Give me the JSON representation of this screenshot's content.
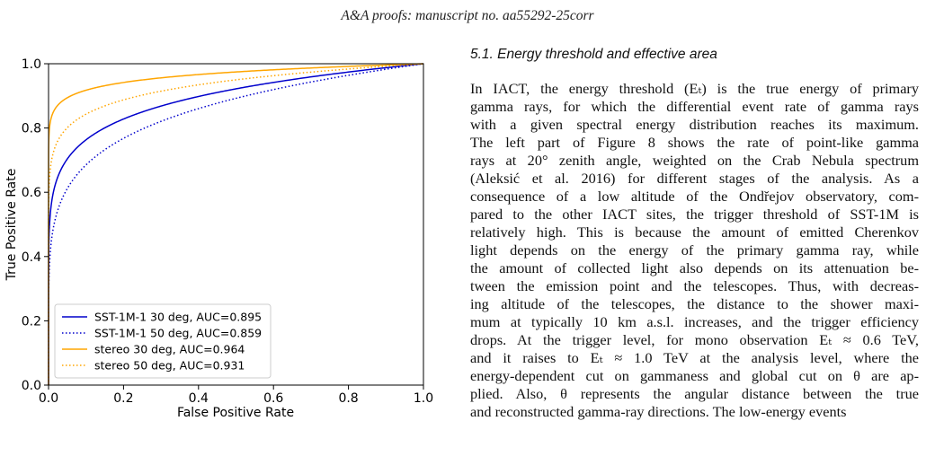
{
  "header": {
    "running_title": "A&A proofs: manuscript no. aa55292-25corr"
  },
  "chart_data": {
    "type": "line",
    "title": "",
    "xlabel": "False Positive Rate",
    "ylabel": "True Positive Rate",
    "xlim": [
      0.0,
      1.0
    ],
    "ylim": [
      0.0,
      1.0
    ],
    "xticks": [
      "0.0",
      "0.2",
      "0.4",
      "0.6",
      "0.8",
      "1.0"
    ],
    "yticks": [
      "0.0",
      "0.2",
      "0.4",
      "0.6",
      "0.8",
      "1.0"
    ],
    "grid": false,
    "legend_position": "lower-right",
    "series": [
      {
        "name": "SST-1M-1 30 deg, AUC=0.895",
        "color": "#0000cc",
        "line_style": "solid",
        "auc": 0.895
      },
      {
        "name": "SST-1M-1 50 deg, AUC=0.859",
        "color": "#0000cc",
        "line_style": "dotted",
        "auc": 0.859
      },
      {
        "name": "stereo 30 deg, AUC=0.964",
        "color": "#ffa500",
        "line_style": "solid",
        "auc": 0.964
      },
      {
        "name": "stereo 50 deg, AUC=0.931",
        "color": "#ffa500",
        "line_style": "dotted",
        "auc": 0.931
      }
    ]
  },
  "section": {
    "heading": "5.1. Energy threshold and effective area"
  },
  "paragraph_lines": [
    "In IACT, the energy threshold (Eₜ) is the true energy of primary",
    "gamma rays, for which the differential event rate of gamma rays",
    "with a given spectral energy distribution reaches its maximum.",
    "The left part of Figure 8 shows the rate of point-like gamma",
    "rays at 20° zenith angle, weighted on the Crab Nebula spectrum",
    "(Aleksić et al. 2016) for different stages of the analysis. As a",
    "consequence of a low altitude of the Ondřejov observatory, com-",
    "pared to the other IACT sites, the trigger threshold of SST-1M is",
    "relatively high. This is because the amount of emitted Cherenkov",
    "light depends on the energy of the primary gamma ray, while",
    "the amount of collected light also depends on its attenuation be-",
    "tween the emission point and the telescopes. Thus, with decreas-",
    "ing altitude of the telescopes, the distance to the shower maxi-",
    "mum at typically 10 km a.s.l. increases, and the trigger efficiency",
    "drops. At the trigger level, for mono observation Eₜ ≈ 0.6 TeV,",
    "and it raises to Eₜ ≈ 1.0 TeV at the analysis level, where the",
    "energy-dependent cut on gammaness and global cut on θ are ap-",
    "plied. Also, θ represents the angular distance between the true",
    "and reconstructed gamma-ray directions. The low-energy events"
  ]
}
